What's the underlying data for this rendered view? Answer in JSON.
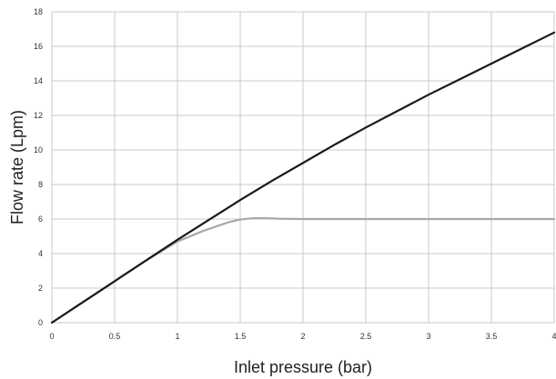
{
  "chart_data": {
    "type": "line",
    "title": "",
    "xlabel": "Inlet pressure (bar)",
    "ylabel": "Flow rate (Lpm)",
    "xlim": [
      0,
      4
    ],
    "ylim": [
      0,
      18
    ],
    "xticks": [
      0,
      0.5,
      1,
      1.5,
      2,
      2.5,
      3,
      3.5,
      4
    ],
    "xtick_labels": [
      "0",
      "0.5",
      "1",
      "1.5",
      "2",
      "2.5",
      "3",
      "3.5",
      "4"
    ],
    "yticks": [
      0,
      2,
      4,
      6,
      8,
      10,
      12,
      14,
      16,
      18
    ],
    "ytick_labels": [
      "0",
      "2",
      "4",
      "6",
      "8",
      "10",
      "12",
      "14",
      "16",
      "18"
    ],
    "grid": true,
    "legend": "none",
    "series": [
      {
        "color": "#1a1a1a",
        "x": [
          0,
          0.25,
          0.5,
          0.75,
          1,
          1.25,
          1.5,
          1.75,
          2,
          2.25,
          2.5,
          2.75,
          3,
          3.25,
          3.5,
          3.75,
          4
        ],
        "y": [
          0,
          1.2,
          2.4,
          3.6,
          4.8,
          5.95,
          7.1,
          8.2,
          9.25,
          10.3,
          11.3,
          12.25,
          13.2,
          14.1,
          15.0,
          15.9,
          16.8
        ]
      },
      {
        "color": "#a8a8a8",
        "x": [
          0,
          0.25,
          0.5,
          0.75,
          1,
          1.2,
          1.4,
          1.5,
          1.6,
          1.7,
          1.8,
          2,
          2.5,
          3,
          3.5,
          4
        ],
        "y": [
          0,
          1.2,
          2.4,
          3.6,
          4.7,
          5.3,
          5.8,
          5.97,
          6.05,
          6.05,
          6.02,
          6.0,
          6.0,
          6.0,
          6.0,
          6.0
        ]
      }
    ]
  }
}
